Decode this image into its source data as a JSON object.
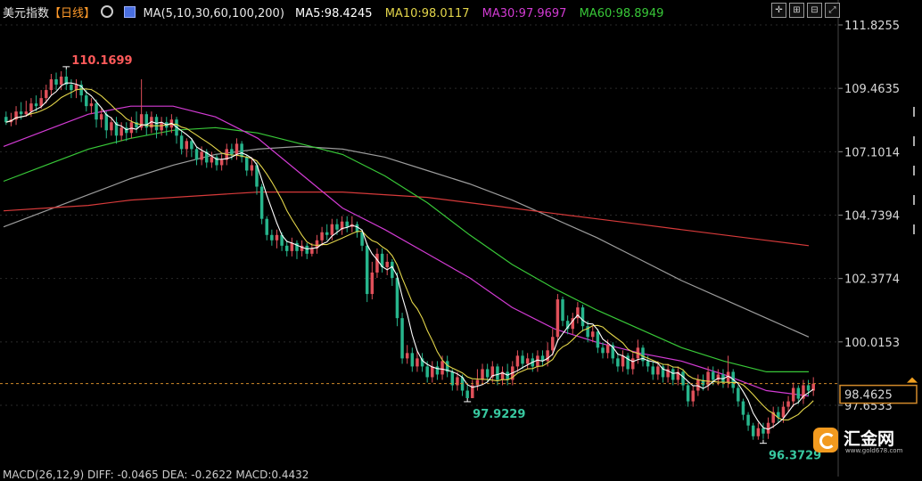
{
  "header": {
    "title": "美元指数",
    "period": "【日线】",
    "settings_icon": "gear-icon",
    "ma_box_icon": "ma-chart-icon",
    "ma_spec": "MA(5,10,30,60,100,200)",
    "ma_values": [
      {
        "label": "MA5:98.4245",
        "color": "#ffffff"
      },
      {
        "label": "MA10:98.0117",
        "color": "#e3d54a"
      },
      {
        "label": "MA30:97.9697",
        "color": "#d23bd3"
      },
      {
        "label": "MA60:98.8949",
        "color": "#38c838"
      }
    ]
  },
  "footer": {
    "macd_text": "MACD(26,12,9) DIFF: -0.0465   DEA: -0.2622   MACD:0.4432"
  },
  "watermark": {
    "brand": "汇金网",
    "url": "www.gold678.com"
  },
  "colors": {
    "up": "#e0505a",
    "down": "#27b58c",
    "ma5": "#ffffff",
    "ma10": "#e3d54a",
    "ma30": "#d23bd3",
    "ma60": "#38c838",
    "ma100": "#9c9c9c",
    "ma200": "#d63a3a",
    "current_line": "#d28a2a"
  },
  "chart_data": {
    "type": "candlestick",
    "title": "美元指数",
    "interval": "日线",
    "y_ticks": [
      "111.8255",
      "109.4635",
      "107.1014",
      "104.7394",
      "102.3774",
      "100.0153",
      "97.6533"
    ],
    "ylim": [
      96.0,
      112.3
    ],
    "current_price": "98.4625",
    "annotations": [
      {
        "label": "110.1699",
        "kind": "high",
        "value": 110.17,
        "bar": 12
      },
      {
        "label": "97.9229",
        "kind": "low",
        "value": 97.92,
        "bar": 92
      },
      {
        "label": "96.3729",
        "kind": "low",
        "value": 96.37,
        "bar": 151
      }
    ],
    "ma_lines": [
      {
        "name": "MA100",
        "color": "#9c9c9c",
        "values": [
          104.3,
          104.9,
          105.5,
          106.1,
          106.6,
          107.0,
          107.2,
          107.3,
          107.2,
          106.9,
          106.4,
          105.9,
          105.3,
          104.6,
          103.9,
          103.1,
          102.3,
          101.6,
          100.9,
          100.2
        ]
      },
      {
        "name": "MA200",
        "color": "#d63a3a",
        "values": [
          104.9,
          105.0,
          105.1,
          105.3,
          105.4,
          105.5,
          105.6,
          105.6,
          105.6,
          105.5,
          105.4,
          105.2,
          105.0,
          104.8,
          104.6,
          104.4,
          104.2,
          104.0,
          103.8,
          103.6
        ]
      },
      {
        "name": "MA60",
        "color": "#38c838",
        "values": [
          106.0,
          106.6,
          107.2,
          107.6,
          107.9,
          108.0,
          107.8,
          107.4,
          107.0,
          106.2,
          105.2,
          104.0,
          102.9,
          102.0,
          101.2,
          100.5,
          99.8,
          99.3,
          98.9,
          98.9
        ]
      },
      {
        "name": "MA30",
        "color": "#d23bd3",
        "values": [
          107.3,
          107.9,
          108.5,
          108.8,
          108.8,
          108.4,
          107.6,
          106.3,
          105.0,
          104.2,
          103.3,
          102.4,
          101.3,
          100.5,
          100.0,
          99.6,
          99.3,
          98.8,
          98.2,
          98.0
        ]
      }
    ],
    "candles": [
      [
        108.4,
        108.2,
        108.6,
        108.1
      ],
      [
        108.2,
        108.3,
        108.55,
        108.05
      ],
      [
        108.3,
        108.6,
        108.8,
        108.1
      ],
      [
        108.6,
        108.5,
        108.95,
        108.3
      ],
      [
        108.5,
        108.6,
        109.0,
        108.4
      ],
      [
        108.6,
        108.9,
        109.1,
        108.4
      ],
      [
        108.9,
        108.8,
        109.2,
        108.6
      ],
      [
        108.8,
        109.1,
        109.4,
        108.7
      ],
      [
        109.1,
        109.4,
        109.6,
        108.9
      ],
      [
        109.4,
        109.8,
        110.0,
        109.2
      ],
      [
        109.8,
        109.6,
        110.05,
        109.4
      ],
      [
        109.6,
        109.9,
        110.1,
        109.4
      ],
      [
        109.9,
        109.6,
        110.17,
        109.4
      ],
      [
        109.6,
        109.4,
        109.8,
        109.1
      ],
      [
        109.4,
        109.6,
        109.8,
        109.1
      ],
      [
        109.6,
        109.2,
        109.75,
        108.95
      ],
      [
        109.2,
        108.8,
        109.4,
        108.6
      ],
      [
        108.8,
        108.9,
        109.1,
        108.5
      ],
      [
        108.9,
        108.3,
        109.05,
        108.0
      ],
      [
        108.3,
        108.5,
        108.7,
        108.0
      ],
      [
        108.5,
        107.9,
        108.6,
        107.6
      ],
      [
        107.9,
        108.2,
        108.4,
        107.7
      ],
      [
        108.2,
        107.7,
        108.4,
        107.4
      ],
      [
        107.7,
        108.0,
        108.2,
        107.5
      ],
      [
        108.0,
        107.8,
        108.2,
        107.5
      ],
      [
        107.8,
        108.2,
        108.4,
        107.6
      ],
      [
        108.2,
        108.0,
        108.6,
        107.8
      ],
      [
        108.0,
        108.5,
        109.8,
        107.9
      ],
      [
        108.5,
        108.0,
        108.6,
        107.7
      ],
      [
        108.0,
        108.4,
        108.6,
        107.8
      ],
      [
        108.4,
        107.9,
        108.5,
        107.6
      ],
      [
        107.9,
        108.2,
        108.4,
        107.7
      ],
      [
        108.2,
        108.0,
        108.4,
        107.7
      ],
      [
        108.0,
        108.3,
        108.5,
        107.8
      ],
      [
        108.3,
        107.7,
        108.4,
        107.4
      ],
      [
        107.7,
        107.2,
        107.9,
        107.0
      ],
      [
        107.2,
        107.5,
        107.6,
        106.9
      ],
      [
        107.5,
        107.2,
        107.6,
        106.9
      ],
      [
        107.2,
        106.8,
        107.3,
        106.6
      ],
      [
        106.8,
        107.1,
        107.3,
        106.6
      ],
      [
        107.1,
        106.7,
        107.2,
        106.5
      ],
      [
        106.7,
        106.9,
        107.1,
        106.5
      ],
      [
        106.9,
        106.6,
        107.0,
        106.4
      ],
      [
        106.6,
        106.8,
        107.0,
        106.4
      ],
      [
        106.8,
        107.2,
        107.4,
        106.6
      ],
      [
        107.2,
        107.0,
        107.4,
        106.8
      ],
      [
        107.0,
        107.4,
        107.6,
        106.8
      ],
      [
        107.4,
        106.9,
        107.5,
        106.7
      ],
      [
        106.9,
        106.4,
        107.0,
        106.2
      ],
      [
        106.4,
        106.6,
        106.9,
        106.2
      ],
      [
        106.6,
        105.8,
        106.7,
        105.5
      ],
      [
        105.8,
        104.6,
        105.9,
        104.4
      ],
      [
        104.6,
        104.0,
        104.7,
        103.8
      ],
      [
        104.0,
        103.8,
        104.2,
        103.6
      ],
      [
        103.8,
        104.0,
        104.2,
        103.5
      ],
      [
        104.0,
        103.6,
        104.1,
        103.4
      ],
      [
        103.6,
        103.4,
        103.8,
        103.2
      ],
      [
        103.4,
        103.7,
        103.9,
        103.2
      ],
      [
        103.7,
        103.4,
        103.8,
        103.1
      ],
      [
        103.4,
        103.6,
        103.8,
        103.2
      ],
      [
        103.6,
        103.3,
        103.7,
        103.1
      ],
      [
        103.3,
        103.5,
        103.7,
        103.2
      ],
      [
        103.5,
        103.8,
        104.0,
        103.3
      ],
      [
        103.8,
        104.1,
        104.3,
        103.6
      ],
      [
        104.1,
        104.0,
        104.4,
        103.8
      ],
      [
        104.0,
        104.4,
        104.6,
        103.8
      ],
      [
        104.4,
        104.2,
        104.6,
        104.0
      ],
      [
        104.2,
        104.5,
        104.7,
        104.0
      ],
      [
        104.5,
        104.3,
        104.7,
        104.1
      ],
      [
        104.3,
        104.4,
        104.7,
        104.1
      ],
      [
        104.4,
        104.1,
        104.5,
        103.9
      ],
      [
        104.1,
        103.6,
        104.2,
        103.4
      ],
      [
        103.6,
        101.8,
        103.7,
        101.5
      ],
      [
        101.8,
        102.6,
        103.0,
        101.6
      ],
      [
        102.6,
        103.3,
        103.5,
        102.4
      ],
      [
        103.3,
        102.8,
        103.5,
        102.6
      ],
      [
        102.8,
        103.0,
        103.3,
        102.5
      ],
      [
        103.0,
        102.4,
        103.1,
        102.1
      ],
      [
        102.4,
        100.9,
        102.6,
        100.6
      ],
      [
        100.9,
        99.4,
        101.1,
        99.2
      ],
      [
        99.4,
        99.6,
        99.9,
        99.2
      ],
      [
        99.6,
        99.1,
        99.8,
        98.9
      ],
      [
        99.1,
        99.4,
        99.7,
        98.9
      ],
      [
        99.4,
        99.1,
        99.6,
        98.9
      ],
      [
        99.1,
        98.7,
        99.3,
        98.5
      ],
      [
        98.7,
        99.1,
        99.3,
        98.5
      ],
      [
        99.1,
        98.8,
        99.3,
        98.6
      ],
      [
        98.8,
        99.3,
        99.5,
        98.6
      ],
      [
        99.3,
        98.9,
        99.5,
        98.7
      ],
      [
        98.9,
        98.4,
        99.0,
        98.2
      ],
      [
        98.4,
        98.7,
        98.9,
        98.2
      ],
      [
        98.7,
        98.2,
        98.8,
        98.0
      ],
      [
        98.2,
        97.92,
        98.4,
        97.92
      ],
      [
        97.92,
        98.4,
        98.6,
        97.92
      ],
      [
        98.4,
        98.6,
        99.0,
        98.2
      ],
      [
        98.6,
        99.0,
        99.2,
        98.4
      ],
      [
        99.0,
        98.7,
        99.2,
        98.5
      ],
      [
        98.7,
        99.1,
        99.3,
        98.5
      ],
      [
        99.1,
        98.6,
        99.2,
        98.4
      ],
      [
        98.6,
        98.9,
        99.1,
        98.4
      ],
      [
        98.9,
        98.6,
        99.2,
        98.4
      ],
      [
        98.6,
        99.1,
        99.3,
        98.4
      ],
      [
        99.1,
        99.5,
        99.7,
        98.9
      ],
      [
        99.5,
        99.2,
        99.7,
        99.0
      ],
      [
        99.2,
        99.4,
        99.6,
        99.0
      ],
      [
        99.4,
        99.1,
        99.6,
        98.9
      ],
      [
        99.1,
        99.5,
        99.7,
        98.9
      ],
      [
        99.5,
        99.3,
        99.7,
        99.1
      ],
      [
        99.3,
        99.7,
        100.0,
        99.1
      ],
      [
        99.7,
        100.2,
        100.5,
        99.5
      ],
      [
        100.2,
        101.6,
        101.8,
        100.0
      ],
      [
        101.6,
        100.8,
        101.7,
        100.6
      ],
      [
        100.8,
        100.5,
        101.0,
        100.3
      ],
      [
        100.5,
        100.9,
        101.1,
        100.3
      ],
      [
        100.9,
        101.3,
        101.5,
        100.7
      ],
      [
        101.3,
        100.6,
        101.4,
        100.4
      ],
      [
        100.6,
        100.2,
        100.8,
        100.0
      ],
      [
        100.2,
        100.4,
        100.6,
        100.0
      ],
      [
        100.4,
        99.8,
        100.5,
        99.6
      ],
      [
        99.8,
        99.6,
        100.0,
        99.4
      ],
      [
        99.6,
        99.9,
        100.1,
        99.4
      ],
      [
        99.9,
        99.4,
        100.0,
        99.2
      ],
      [
        99.4,
        99.1,
        99.6,
        98.9
      ],
      [
        99.1,
        99.5,
        99.7,
        98.9
      ],
      [
        99.5,
        99.0,
        99.6,
        98.8
      ],
      [
        99.0,
        99.4,
        99.6,
        98.8
      ],
      [
        99.4,
        99.8,
        100.1,
        99.2
      ],
      [
        99.8,
        99.3,
        99.9,
        99.1
      ],
      [
        99.3,
        99.1,
        99.5,
        98.9
      ],
      [
        99.1,
        98.8,
        99.3,
        98.6
      ],
      [
        98.8,
        99.1,
        99.3,
        98.6
      ],
      [
        99.1,
        98.7,
        99.2,
        98.5
      ],
      [
        98.7,
        99.0,
        99.2,
        98.5
      ],
      [
        99.0,
        98.6,
        99.1,
        98.4
      ],
      [
        98.6,
        98.9,
        99.1,
        98.4
      ],
      [
        98.9,
        98.4,
        99.0,
        98.2
      ],
      [
        98.4,
        97.8,
        98.5,
        97.6
      ],
      [
        97.8,
        98.2,
        98.4,
        97.6
      ],
      [
        98.2,
        98.6,
        98.8,
        98.0
      ],
      [
        98.6,
        98.4,
        98.8,
        98.2
      ],
      [
        98.4,
        98.9,
        99.1,
        98.2
      ],
      [
        98.9,
        98.6,
        99.1,
        98.4
      ],
      [
        98.6,
        98.8,
        99.0,
        98.4
      ],
      [
        98.8,
        98.5,
        99.0,
        98.3
      ],
      [
        98.5,
        98.9,
        99.5,
        98.3
      ],
      [
        98.9,
        98.3,
        99.0,
        98.1
      ],
      [
        98.3,
        97.8,
        98.4,
        97.6
      ],
      [
        97.8,
        97.3,
        97.9,
        97.1
      ],
      [
        97.3,
        96.9,
        97.4,
        96.7
      ],
      [
        96.9,
        96.5,
        97.0,
        96.37
      ],
      [
        96.5,
        96.8,
        97.0,
        96.37
      ],
      [
        96.8,
        96.6,
        97.0,
        96.4
      ],
      [
        96.6,
        97.0,
        97.2,
        96.4
      ],
      [
        97.0,
        97.4,
        97.6,
        96.8
      ],
      [
        97.4,
        97.2,
        97.6,
        97.0
      ],
      [
        97.2,
        97.6,
        97.8,
        97.0
      ],
      [
        97.6,
        97.8,
        98.0,
        97.4
      ],
      [
        97.8,
        98.3,
        98.5,
        97.6
      ],
      [
        98.3,
        97.9,
        98.4,
        97.7
      ],
      [
        97.9,
        98.4,
        98.6,
        97.7
      ],
      [
        98.4,
        98.2,
        98.6,
        98.0
      ],
      [
        98.2,
        98.46,
        98.7,
        98.0
      ]
    ]
  }
}
